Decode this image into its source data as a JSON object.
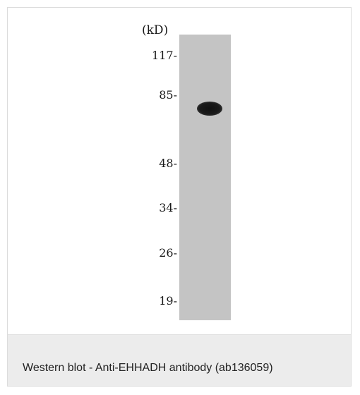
{
  "blot": {
    "unit_label": "(kD)",
    "markers": [
      "117-",
      "85-",
      "48-",
      "34-",
      "26-",
      "19-"
    ]
  },
  "caption": {
    "text": "Western blot - Anti-EHHADH antibody (ab136059)"
  }
}
